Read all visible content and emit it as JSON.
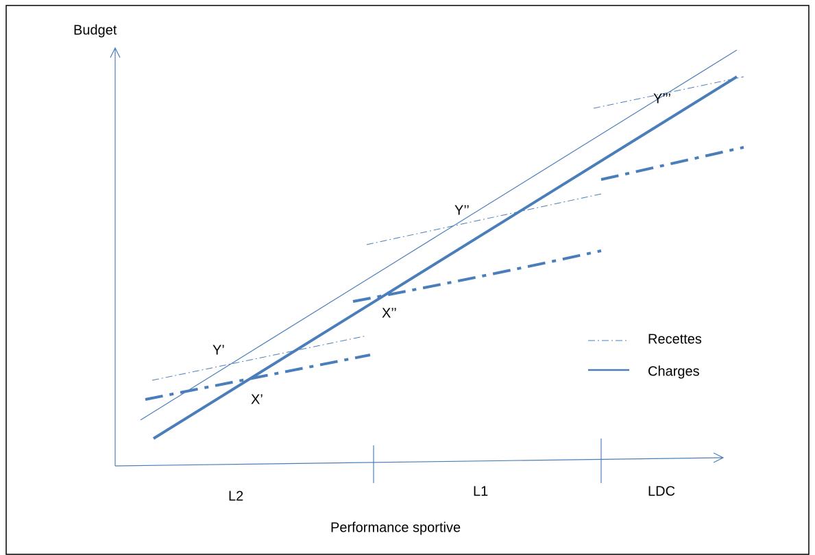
{
  "axis_labels": {
    "y": "Budget",
    "x": "Performance sportive"
  },
  "leagues": [
    "L2",
    "L1",
    "LDC"
  ],
  "points": {
    "y1": "Y’",
    "y2": "Y’’",
    "y3": "Y’’’",
    "x1": "X’",
    "x2": "X’’"
  },
  "legend": [
    "Recettes",
    "Charges"
  ]
}
